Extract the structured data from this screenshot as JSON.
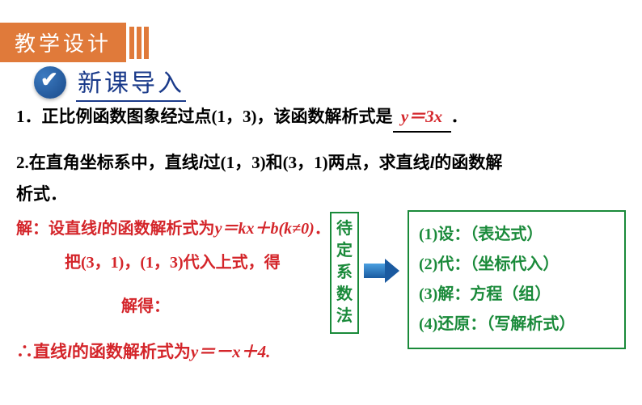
{
  "header": {
    "tab": "教学设计"
  },
  "section": {
    "title": "新课导入"
  },
  "q1": {
    "prefix": "1．正比例函数图象经过点(1，3)，该函数解析式是",
    "answer": "y＝3x",
    "suffix": "．"
  },
  "q2": {
    "line1_a": "2.在直角坐标系中，直线",
    "line1_b": "l",
    "line1_c": "过(1，3)和(3，1)两点，求直线",
    "line1_d": "l",
    "line1_e": "的函数解",
    "line2": "析式．"
  },
  "solution": {
    "line1_a": "解：设直线",
    "line1_b": "l",
    "line1_c": "的函数解析式为",
    "line1_d": "y＝kx＋b(k≠0)",
    "line1_e": "．",
    "line2": "把(3，1)，(1，3)代入上式，得",
    "line3": "解得：",
    "final_a": "∴直线",
    "final_b": "l",
    "final_c": "的函数解析式为",
    "final_d": "y＝－x＋4."
  },
  "method": {
    "label": "待定系数法",
    "steps": {
      "s1": "(1)设：（表达式）",
      "s2": "(2)代：（坐标代入）",
      "s3": "(3)解：方程（组）",
      "s4": "(4)还原：（写解析式）"
    }
  },
  "colors": {
    "orange": "#e07a3a",
    "red": "#d4252a",
    "green": "#1a8a3a",
    "blue": "#1a5aa0",
    "darkblue": "#1a3a8a"
  }
}
